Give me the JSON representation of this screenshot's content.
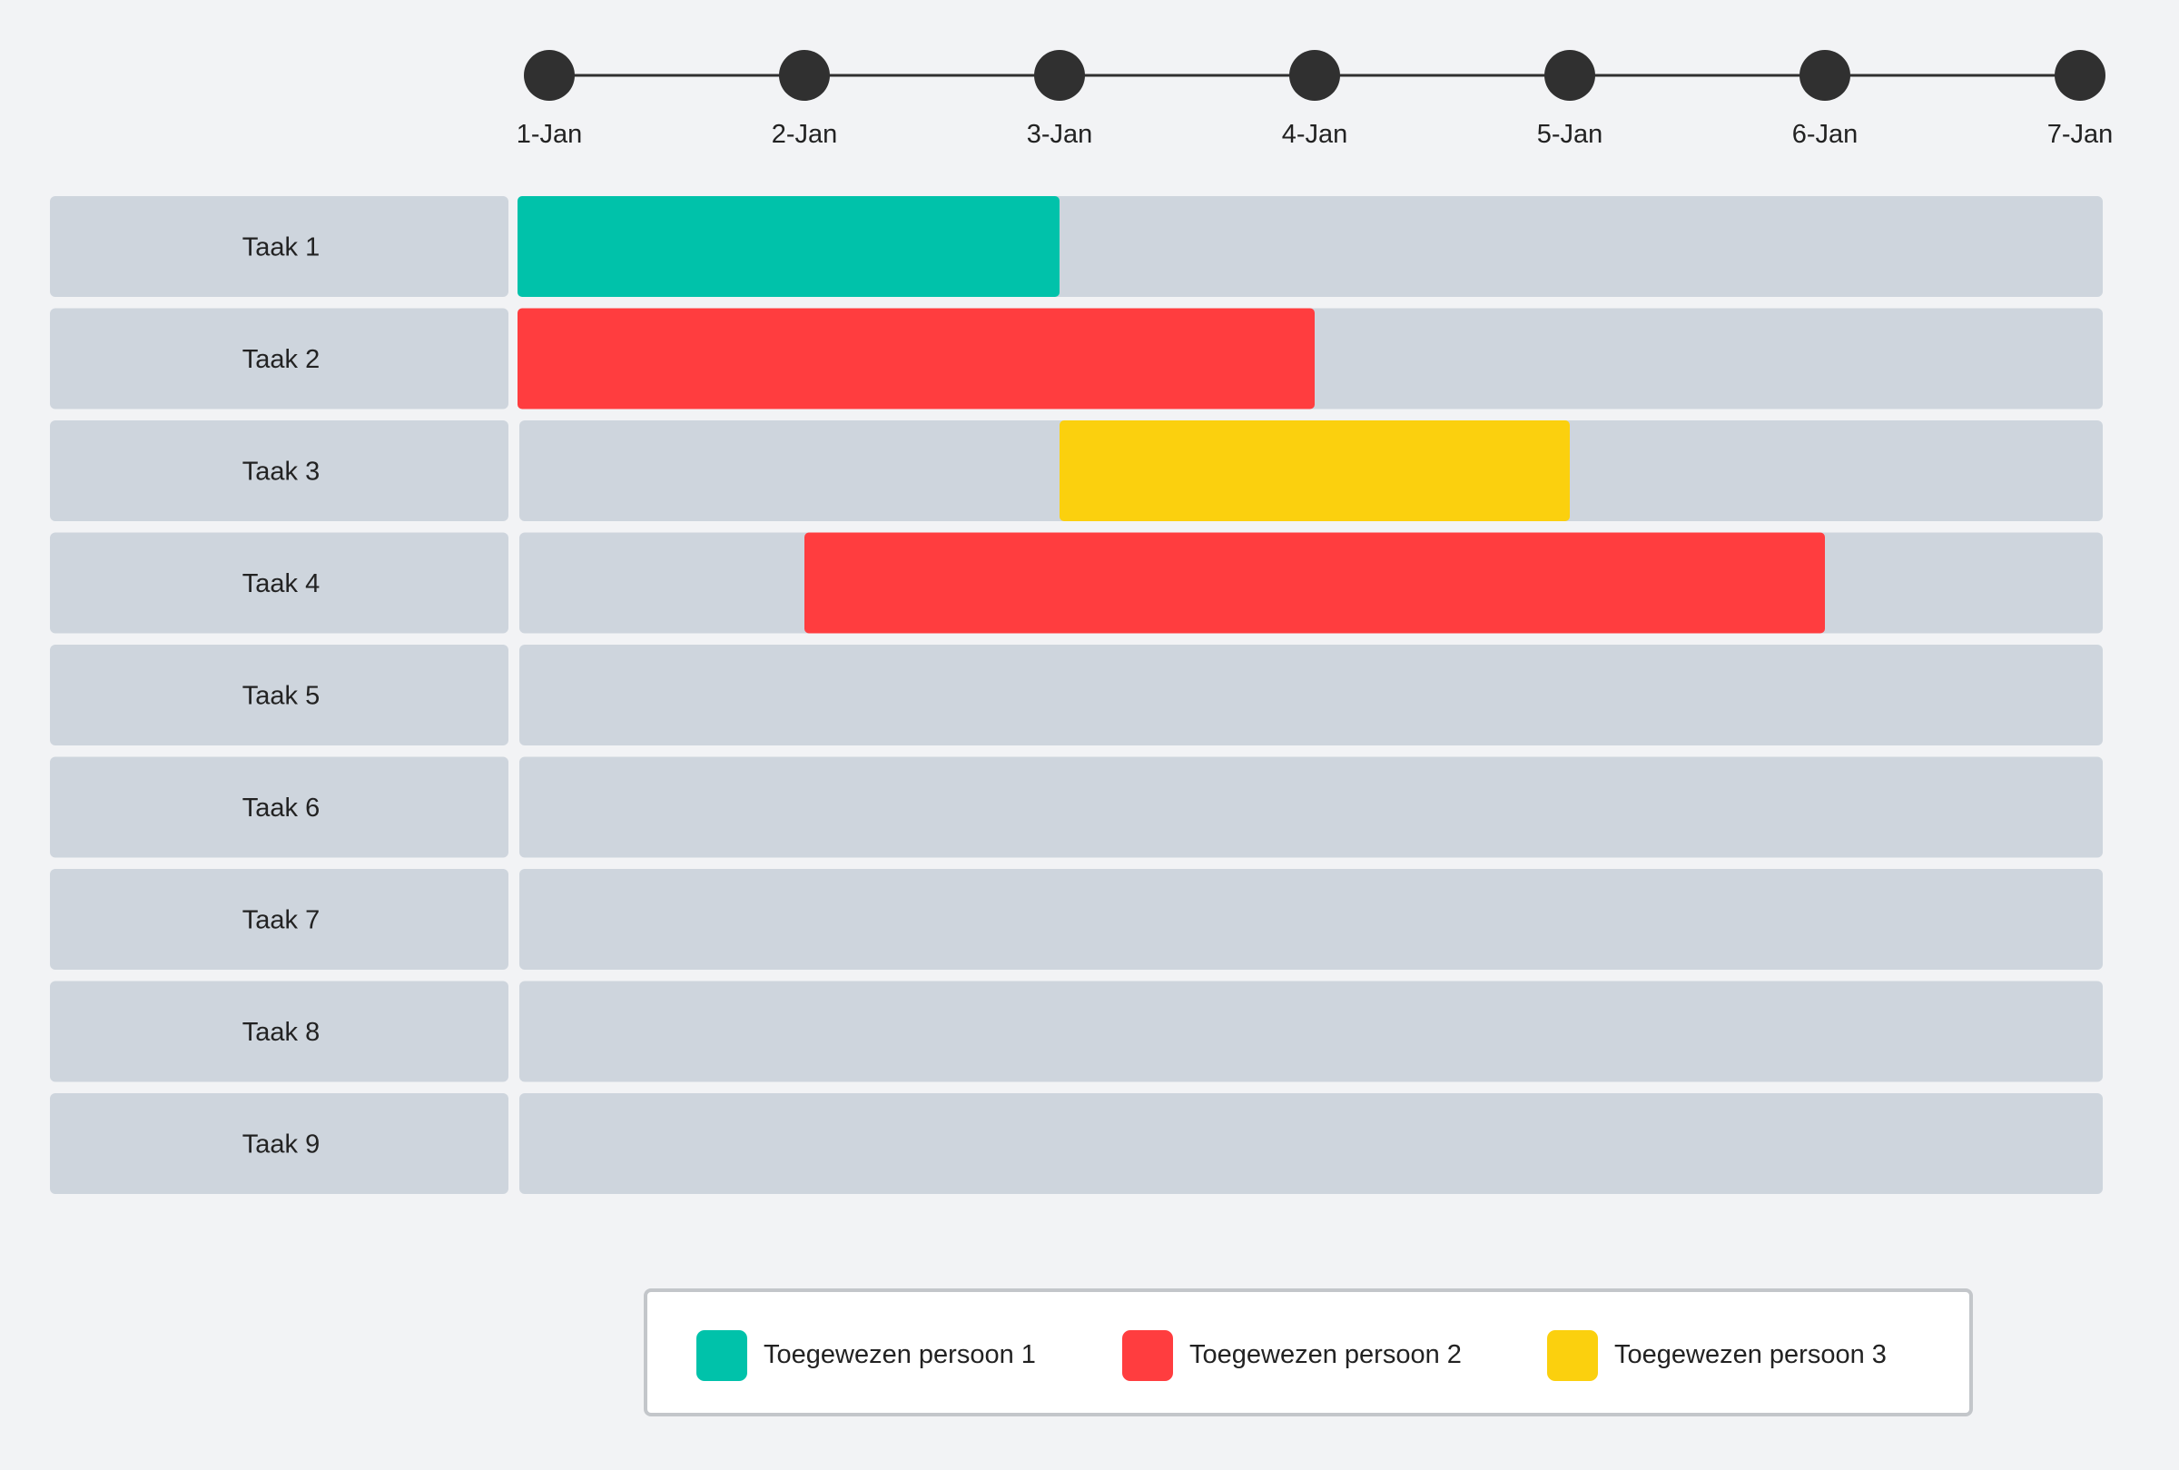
{
  "chart_data": {
    "type": "gantt",
    "x_ticks": [
      "1-Jan",
      "2-Jan",
      "3-Jan",
      "4-Jan",
      "5-Jan",
      "6-Jan",
      "7-Jan"
    ],
    "tasks": [
      {
        "name": "Taak 1",
        "start": "1-Jan",
        "end": "3-Jan",
        "assignee": 1
      },
      {
        "name": "Taak 2",
        "start": "1-Jan",
        "end": "4-Jan",
        "assignee": 2
      },
      {
        "name": "Taak 3",
        "start": "3-Jan",
        "end": "5-Jan",
        "assignee": 3
      },
      {
        "name": "Taak 4",
        "start": "2-Jan",
        "end": "6-Jan",
        "assignee": 2
      },
      {
        "name": "Taak 5",
        "start": null,
        "end": null,
        "assignee": null
      },
      {
        "name": "Taak 6",
        "start": null,
        "end": null,
        "assignee": null
      },
      {
        "name": "Taak 7",
        "start": null,
        "end": null,
        "assignee": null
      },
      {
        "name": "Taak 8",
        "start": null,
        "end": null,
        "assignee": null
      },
      {
        "name": "Taak 9",
        "start": null,
        "end": null,
        "assignee": null
      }
    ],
    "legend": [
      {
        "label": "Toegewezen persoon 1",
        "color": "#00c2aa"
      },
      {
        "label": "Toegewezen persoon 2",
        "color": "#ff3d3f"
      },
      {
        "label": "Toegewezen persoon 3",
        "color": "#fbd00e"
      }
    ],
    "legend_position": "bottom",
    "colors": {
      "background": "#f2f3f5",
      "row": "#ced5dd",
      "timeline": "#303030",
      "text": "#222222"
    }
  }
}
